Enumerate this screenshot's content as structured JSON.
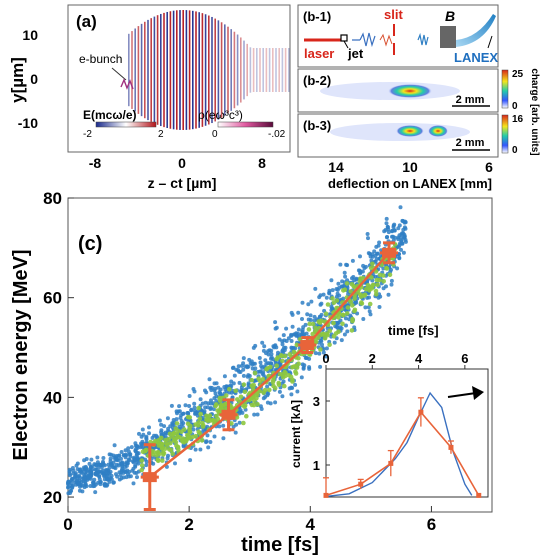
{
  "panel_a": {
    "label": "(a)",
    "ylabel": "y[µm]",
    "xlabel": "z – ct [µm]",
    "x_ticks": [
      "-8",
      "0",
      "8"
    ],
    "y_ticks": [
      "10",
      "0",
      "-10"
    ],
    "annotation": "e-bunch",
    "cbar_e": {
      "label": "E(mcω/e)",
      "min": "-2",
      "max": "2"
    },
    "cbar_rho": {
      "label": "ρ(eω³c³)",
      "min": "0",
      "max": "-.02"
    }
  },
  "panel_b1": {
    "label": "(b-1)",
    "laser": "laser",
    "jet": "jet",
    "slit": "slit",
    "magnet": "B",
    "screen": "LANEX"
  },
  "panel_b2": {
    "label": "(b-2)",
    "scale": "2 mm",
    "cbar_max": "25",
    "cbar_min": "0"
  },
  "panel_b3": {
    "label": "(b-3)",
    "scale": "2 mm",
    "cbar_max": "16",
    "cbar_min": "0"
  },
  "panel_b_axis": {
    "xlabel": "deflection on LANEX [mm]",
    "ticks": [
      "14",
      "10",
      "6"
    ],
    "cbar_label": "charge [arb. units]"
  },
  "panel_c": {
    "label": "(c)"
  },
  "colors": {
    "scatter_blue": "#2f7fc4",
    "scatter_green": "#8dc63f",
    "orange": "#e8643a"
  },
  "chart_data": [
    {
      "type": "scatter",
      "title": "",
      "xlabel": "time [fs]",
      "ylabel": "Electron energy [MeV]",
      "xlim": [
        0,
        7
      ],
      "ylim": [
        17,
        80
      ],
      "x_ticks": [
        0,
        2,
        4,
        6
      ],
      "y_ticks": [
        20,
        40,
        60,
        80
      ],
      "series": [
        {
          "x": [
            1.35,
            2.65,
            3.95,
            5.3
          ],
          "y": [
            24,
            36.5,
            50.5,
            69
          ],
          "xerr": [
            0.15,
            0.15,
            0.15,
            0.15
          ],
          "yerr": [
            6.5,
            3,
            1.5,
            2
          ]
        }
      ],
      "scatter_bands": [
        {
          "t": [
            0,
            1,
            2,
            3,
            4,
            5,
            5.6
          ],
          "e": [
            23,
            27,
            34,
            42,
            52,
            64,
            74
          ],
          "spread": [
            2,
            3,
            4.5,
            5,
            6,
            6,
            4
          ]
        },
        {
          "t": [
            1.2,
            2,
            3,
            4,
            5,
            5.4
          ],
          "e": [
            28,
            33,
            40,
            51,
            63,
            70
          ],
          "spread": [
            2,
            3,
            3,
            3.5,
            4,
            2
          ]
        }
      ]
    },
    {
      "type": "line",
      "title": "",
      "xlabel": "time [fs]",
      "ylabel": "current [kA]",
      "xlim": [
        0,
        7
      ],
      "ylim": [
        0,
        4
      ],
      "x_ticks": [
        0,
        2,
        4,
        6
      ],
      "y_ticks": [
        1,
        3
      ],
      "series": [
        {
          "x": [
            0,
            1.5,
            2.8,
            4.1,
            5.4,
            6.6
          ],
          "y": [
            0.05,
            0.4,
            1.05,
            2.65,
            1.55,
            0.05
          ],
          "yerr": [
            0.55,
            0.15,
            0.4,
            0.45,
            0.2,
            0
          ]
        },
        {
          "x": [
            0,
            1,
            2,
            3,
            3.5,
            4,
            4.5,
            5,
            5.5,
            6,
            6.3
          ],
          "y": [
            0.02,
            0.1,
            0.45,
            1.2,
            1.7,
            2.5,
            3.25,
            2.8,
            1.4,
            0.4,
            0.05
          ]
        }
      ]
    }
  ]
}
